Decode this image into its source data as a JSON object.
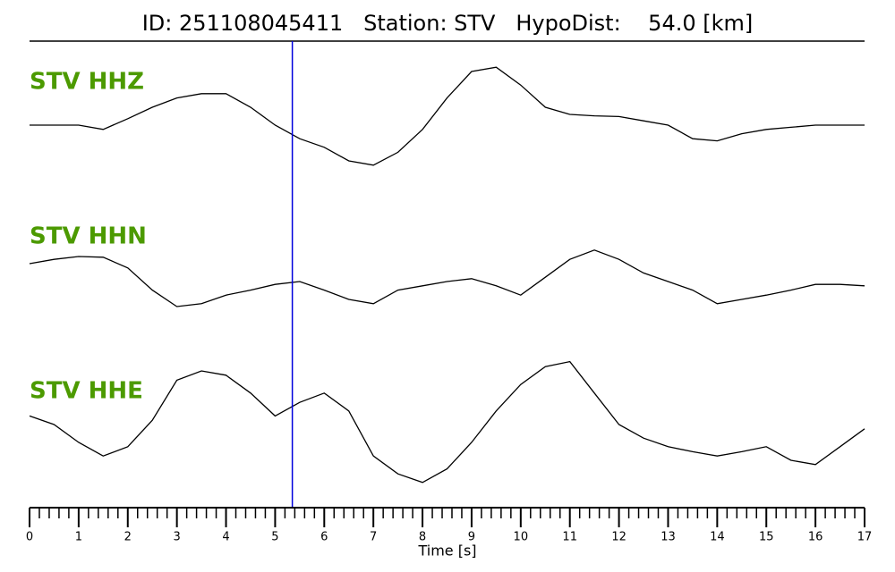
{
  "chart_data": {
    "type": "waveform",
    "title": "ID: 251108045411   Station: STV   HypoDist:    54.0 [km]",
    "xlabel": "Time [s]",
    "xlim": [
      0,
      17
    ],
    "xticks": [
      0,
      1,
      2,
      3,
      4,
      5,
      6,
      7,
      8,
      9,
      10,
      11,
      12,
      13,
      14,
      15,
      16,
      17
    ],
    "xminorticks": [
      0.2,
      0.4,
      0.6,
      0.8,
      1.2,
      1.4,
      1.6,
      1.8,
      2.2,
      2.4,
      2.6,
      2.8,
      3.2,
      3.4,
      3.6,
      3.8,
      4.2,
      4.4,
      4.6,
      4.8,
      5.2,
      5.4,
      5.6,
      5.8,
      6.2,
      6.4,
      6.6,
      6.8,
      7.2,
      7.4,
      7.6,
      7.8,
      8.2,
      8.4,
      8.6,
      8.8,
      9.2,
      9.4,
      9.6,
      9.8,
      10.2,
      10.4,
      10.6,
      10.8,
      11.2,
      11.4,
      11.6,
      11.8,
      12.2,
      12.4,
      12.6,
      12.8,
      13.2,
      13.4,
      13.6,
      13.8,
      14.2,
      14.4,
      14.6,
      14.8,
      15.2,
      15.4,
      15.6,
      15.8,
      16.2,
      16.4,
      16.6,
      16.8
    ],
    "ylim": [
      -1,
      1
    ],
    "label_color": "#4c9a00",
    "pick": {
      "x": 5.35,
      "color": "#0000dd"
    },
    "x": [
      0,
      0.5,
      1,
      1.5,
      2,
      2.5,
      3,
      3.5,
      4,
      4.5,
      5,
      5.5,
      6,
      6.5,
      7,
      7.5,
      8,
      8.5,
      9,
      9.5,
      10,
      10.5,
      11,
      11.5,
      12,
      12.5,
      13,
      13.5,
      14,
      14.5,
      15,
      15.5,
      16,
      16.5,
      17
    ],
    "series": [
      {
        "name": "STV HHZ",
        "color": "#000000",
        "values": [
          0,
          0,
          0,
          -0.06,
          0.09,
          0.25,
          0.38,
          0.44,
          0.44,
          0.25,
          0,
          -0.19,
          -0.31,
          -0.5,
          -0.56,
          -0.38,
          -0.06,
          0.38,
          0.75,
          0.81,
          0.56,
          0.25,
          0.15,
          0.13,
          0.12,
          0.06,
          0,
          -0.19,
          -0.22,
          -0.12,
          -0.06,
          -0.03,
          0,
          0,
          0
        ]
      },
      {
        "name": "STV HHN",
        "color": "#000000",
        "values": [
          0.25,
          0.31,
          0.35,
          0.34,
          0.19,
          -0.12,
          -0.35,
          -0.31,
          -0.19,
          -0.12,
          -0.04,
          0,
          -0.12,
          -0.25,
          -0.31,
          -0.12,
          -0.06,
          0,
          0.04,
          -0.06,
          -0.19,
          0.06,
          0.31,
          0.44,
          0.31,
          0.12,
          0,
          -0.12,
          -0.31,
          -0.25,
          -0.19,
          -0.12,
          -0.04,
          -0.04,
          -0.06
        ]
      },
      {
        "name": "STV HHE",
        "color": "#000000",
        "values": [
          0.12,
          0,
          -0.25,
          -0.44,
          -0.31,
          0.06,
          0.62,
          0.75,
          0.69,
          0.44,
          0.12,
          0.31,
          0.44,
          0.19,
          -0.44,
          -0.69,
          -0.81,
          -0.62,
          -0.25,
          0.19,
          0.56,
          0.81,
          0.88,
          0.44,
          0,
          -0.19,
          -0.31,
          -0.38,
          -0.44,
          -0.38,
          -0.31,
          -0.5,
          -0.56,
          -0.31,
          -0.06
        ]
      }
    ]
  }
}
